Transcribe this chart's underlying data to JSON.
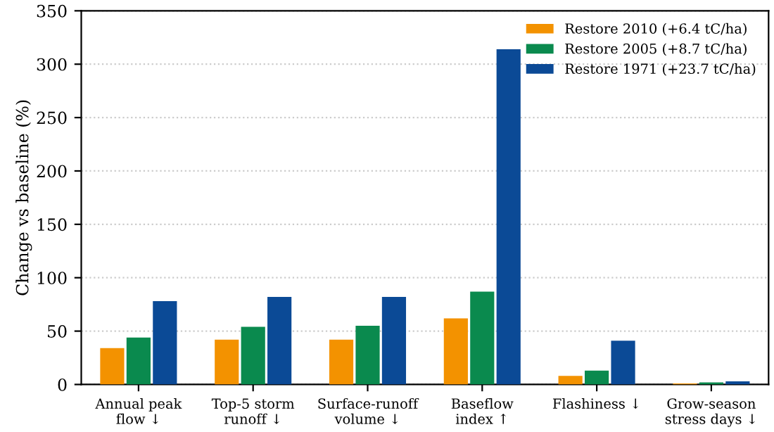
{
  "chart_data": {
    "type": "bar",
    "ylabel": "Change vs baseline (%)",
    "categories": [
      "Annual peak\nflow ↓",
      "Top-5 storm\nrunoff ↓",
      "Surface-runoff\nvolume ↓",
      "Baseflow\nindex ↑",
      "Flashiness ↓",
      "Grow-season\nstress days ↓"
    ],
    "series": [
      {
        "name": "Restore 2010 (+6.4 tC/ha)",
        "color": "#f39200",
        "values": [
          34,
          42,
          42,
          62,
          8,
          1
        ]
      },
      {
        "name": "Restore 2005 (+8.7 tC/ha)",
        "color": "#0a8a4e",
        "values": [
          44,
          54,
          55,
          87,
          13,
          2
        ]
      },
      {
        "name": "Restore 1971 (+23.7 tC/ha)",
        "color": "#0b4a96",
        "values": [
          78,
          82,
          82,
          314,
          41,
          3
        ]
      }
    ],
    "ylim": [
      0,
      350
    ],
    "yticks": [
      0,
      50,
      100,
      150,
      200,
      250,
      300,
      350
    ],
    "grid": "y",
    "legend": "top right"
  }
}
